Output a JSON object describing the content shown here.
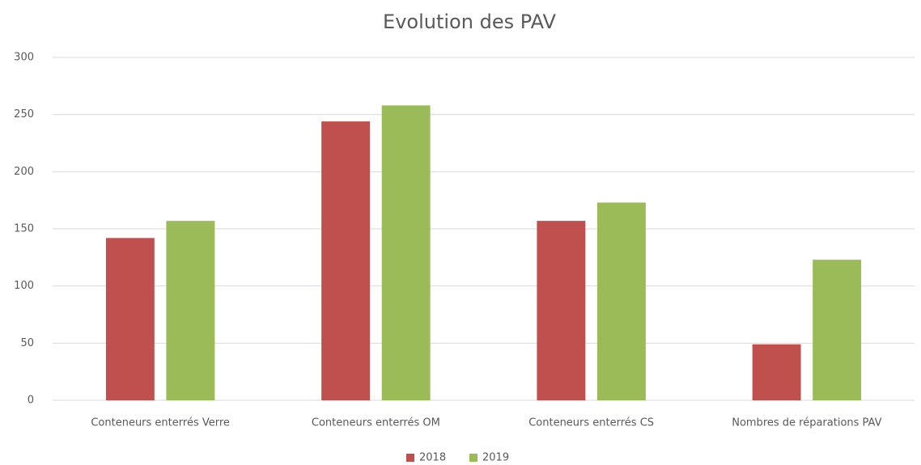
{
  "chart_data": {
    "type": "bar",
    "title": "Evolution des PAV",
    "categories": [
      "Conteneurs enterrés Verre",
      "Conteneurs enterrés OM",
      "Conteneurs enterrés CS",
      "Nombres de réparations PAV"
    ],
    "series": [
      {
        "name": "2018",
        "color": "#c0504d",
        "values": [
          142,
          244,
          157,
          49
        ]
      },
      {
        "name": "2019",
        "color": "#9bbb59",
        "values": [
          157,
          258,
          173,
          123
        ]
      }
    ],
    "ylim": [
      0,
      300
    ],
    "yticks": [
      0,
      50,
      100,
      150,
      200,
      250,
      300
    ],
    "grid": true,
    "legend": "bottom"
  }
}
